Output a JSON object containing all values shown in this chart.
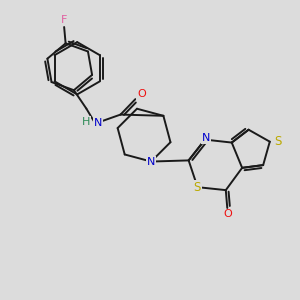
{
  "bg_color": "#dcdcdc",
  "bond_color": "#1a1a1a",
  "atom_colors": {
    "F": "#e060a0",
    "N": "#0000cc",
    "O": "#ee1111",
    "S": "#bbaa00",
    "H": "#2e8b57",
    "C": "#1a1a1a"
  },
  "lw": 1.4,
  "dbo": 0.09
}
